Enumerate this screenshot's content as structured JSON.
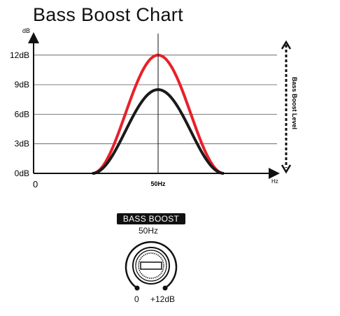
{
  "chart_data": {
    "type": "line",
    "title": "Bass Boost Chart",
    "ylabel": "dB",
    "xlabel": "Hz",
    "ylim": [
      0,
      14
    ],
    "yticks": [
      {
        "value": 0,
        "label": "0dB"
      },
      {
        "value": 3,
        "label": "3dB"
      },
      {
        "value": 6,
        "label": "6dB"
      },
      {
        "value": 9,
        "label": "9dB"
      },
      {
        "value": 12,
        "label": "12dB"
      }
    ],
    "x_origin_label": "0",
    "x_center_label": "50Hz",
    "right_axis_label": "Bass Boost Level",
    "series": [
      {
        "color": "#e8202a",
        "peak": 12
      },
      {
        "color": "#1a1a1a",
        "peak": 8.5
      }
    ]
  },
  "knob": {
    "badge": "BASS BOOST",
    "frequency": "50Hz",
    "min_label": "0",
    "max_label": "+12dB"
  }
}
